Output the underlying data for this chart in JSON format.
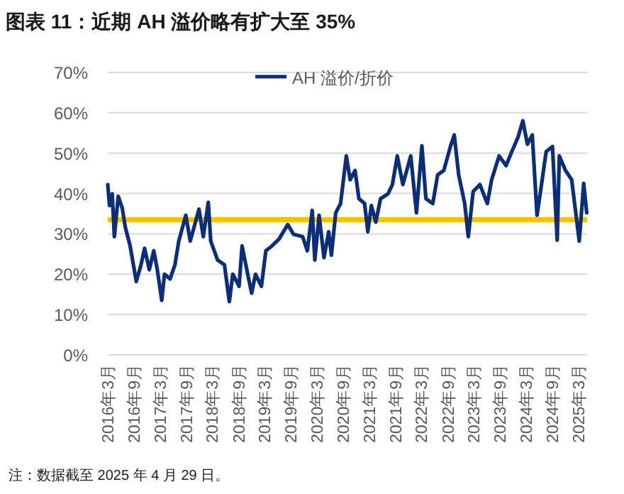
{
  "chart_data": {
    "type": "line",
    "title": "图表 11：近期 AH 溢价略有扩大至 35%",
    "x": [
      "2016-03-01",
      "2016-03-13",
      "2016-04-01",
      "2016-04-16",
      "2016-05-13",
      "2016-06-10",
      "2016-07-01",
      "2016-08-04",
      "2016-09-16",
      "2016-10-19",
      "2016-11-13",
      "2016-12-16",
      "2017-01-16",
      "2017-02-10",
      "2017-03-13",
      "2017-04-01",
      "2017-05-10",
      "2017-06-13",
      "2017-07-10",
      "2017-08-28",
      "2017-09-28",
      "2017-11-28",
      "2017-12-28",
      "2018-02-01",
      "2018-02-18",
      "2018-04-07",
      "2018-05-25",
      "2018-06-28",
      "2018-07-22",
      "2018-09-04",
      "2018-09-25",
      "2018-11-10",
      "2018-12-01",
      "2018-12-28",
      "2019-02-07",
      "2019-03-10",
      "2019-04-22",
      "2019-06-10",
      "2019-08-10",
      "2019-09-19",
      "2019-11-22",
      "2019-12-25",
      "2020-01-28",
      "2020-02-15",
      "2020-03-16",
      "2020-04-19",
      "2020-05-22",
      "2020-06-10",
      "2020-07-10",
      "2020-08-13",
      "2020-09-22",
      "2020-10-19",
      "2020-11-22",
      "2020-12-19",
      "2021-01-28",
      "2021-02-19",
      "2021-03-16",
      "2021-04-16",
      "2021-05-19",
      "2021-07-10",
      "2021-08-10",
      "2021-09-13",
      "2021-10-22",
      "2021-12-16",
      "2022-01-25",
      "2022-03-04",
      "2022-04-01",
      "2022-05-19",
      "2022-06-22",
      "2022-08-04",
      "2022-09-19",
      "2022-10-16",
      "2022-11-16",
      "2022-12-28",
      "2023-01-22",
      "2023-02-25",
      "2023-04-13",
      "2023-06-04",
      "2023-07-04",
      "2023-08-25",
      "2023-10-13",
      "2023-11-22",
      "2024-01-04",
      "2024-02-07",
      "2024-03-10",
      "2024-04-13",
      "2024-05-16",
      "2024-06-07",
      "2024-07-19",
      "2024-09-01",
      "2024-10-04",
      "2024-10-19",
      "2024-12-01",
      "2025-01-13",
      "2025-03-07",
      "2025-04-07",
      "2025-04-28"
    ],
    "series": [
      {
        "name": "AH 溢价/折价",
        "color": "#0b2e7a",
        "values": [
          42.2,
          37,
          39.9,
          29.3,
          39.3,
          36.4,
          31.7,
          27,
          18.2,
          22.3,
          26.4,
          21.1,
          25.8,
          21.1,
          13.5,
          20,
          18.8,
          22.3,
          28.2,
          34.6,
          28.2,
          36.1,
          29.3,
          37.8,
          28.2,
          23.5,
          22.3,
          13.2,
          20,
          17,
          27,
          18.8,
          15.3,
          20,
          17,
          25.8,
          27,
          28.7,
          32.3,
          29.9,
          29.3,
          25.8,
          35.8,
          23.5,
          34.6,
          24.1,
          30.5,
          24.7,
          35.2,
          37.5,
          49.3,
          43.4,
          45.7,
          38.7,
          37.5,
          30.5,
          37,
          32.9,
          38.7,
          39.9,
          42.2,
          49.3,
          42.2,
          49.3,
          35.2,
          51.8,
          38.7,
          37.5,
          44.6,
          45.7,
          51.6,
          54.5,
          44.6,
          37.5,
          29.3,
          40.5,
          42.2,
          37.5,
          43.4,
          49.3,
          46.9,
          50.4,
          53.9,
          58,
          52.2,
          54.5,
          34.6,
          39.9,
          50.4,
          51.6,
          28.4,
          49.3,
          45.7,
          43.4,
          28.2,
          42.5,
          35.2
        ]
      }
    ],
    "xlim": [
      "2016-03-01",
      "2025-05-01"
    ],
    "xticks": [
      {
        "value": "2016-03",
        "label": "2016年3月"
      },
      {
        "value": "2016-09",
        "label": "2016年9月"
      },
      {
        "value": "2017-03",
        "label": "2017年3月"
      },
      {
        "value": "2017-09",
        "label": "2017年9月"
      },
      {
        "value": "2018-03",
        "label": "2018年3月"
      },
      {
        "value": "2018-09",
        "label": "2018年9月"
      },
      {
        "value": "2019-03",
        "label": "2019年3月"
      },
      {
        "value": "2019-09",
        "label": "2019年9月"
      },
      {
        "value": "2020-03",
        "label": "2020年3月"
      },
      {
        "value": "2020-09",
        "label": "2020年9月"
      },
      {
        "value": "2021-03",
        "label": "2021年3月"
      },
      {
        "value": "2021-09",
        "label": "2021年9月"
      },
      {
        "value": "2022-03",
        "label": "2022年3月"
      },
      {
        "value": "2022-09",
        "label": "2022年9月"
      },
      {
        "value": "2023-03",
        "label": "2023年3月"
      },
      {
        "value": "2023-09",
        "label": "2023年9月"
      },
      {
        "value": "2024-03",
        "label": "2024年3月"
      },
      {
        "value": "2024-09",
        "label": "2024年9月"
      },
      {
        "value": "2025-03",
        "label": "2025年3月"
      }
    ],
    "ylim": [
      0,
      70
    ],
    "yticks": [
      {
        "value": 0,
        "label": "0%"
      },
      {
        "value": 10,
        "label": "10%"
      },
      {
        "value": 20,
        "label": "20%"
      },
      {
        "value": 30,
        "label": "30%"
      },
      {
        "value": 40,
        "label": "40%"
      },
      {
        "value": 50,
        "label": "50%"
      },
      {
        "value": 60,
        "label": "60%"
      },
      {
        "value": 70,
        "label": "70%"
      }
    ],
    "ref_lines": [
      {
        "axis": "y",
        "value": 33.5,
        "color": "#ffc000"
      }
    ],
    "grid": "y",
    "legend": "top right",
    "annotations": [
      "注：数据截至 2025 年 4 月 29 日。"
    ]
  }
}
